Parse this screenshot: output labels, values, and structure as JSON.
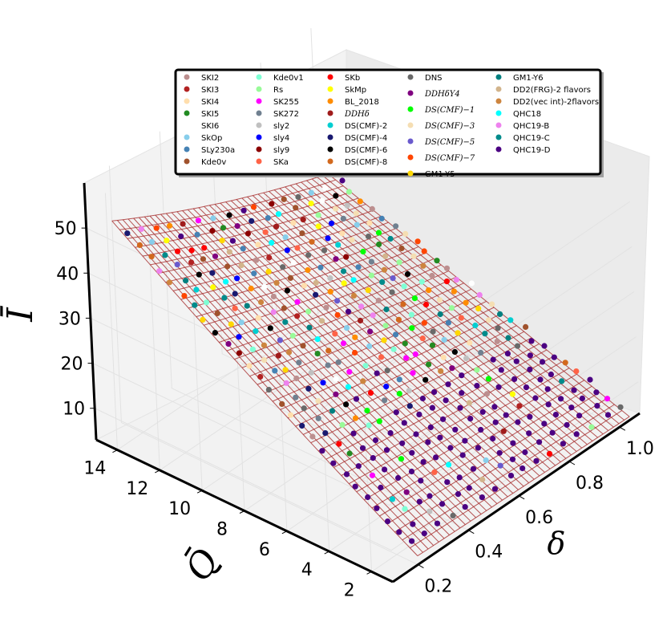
{
  "chart_data": {
    "type": "scatter",
    "title": "",
    "xlabel": "δ",
    "ylabel": "Q̄",
    "zlabel": "Ī",
    "x_ticks": [
      "0.2",
      "0.4",
      "0.6",
      "0.8",
      "1.0"
    ],
    "y_ticks": [
      "2",
      "4",
      "6",
      "8",
      "10",
      "12",
      "14"
    ],
    "z_ticks": [
      "10",
      "20",
      "30",
      "40",
      "50"
    ],
    "xlim": [
      0.1,
      1.08
    ],
    "ylim": [
      1,
      15
    ],
    "zlim": [
      3,
      60
    ],
    "surface": {
      "type": "wireframe",
      "color": "#a52a2a"
    },
    "legend_position": "top",
    "legend": [
      {
        "name": "SKI2",
        "color": "#bc8f8f"
      },
      {
        "name": "SKI3",
        "color": "#b22222"
      },
      {
        "name": "SKI4",
        "color": "#ffdead"
      },
      {
        "name": "SKI5",
        "color": "#228b22"
      },
      {
        "name": "SKI6",
        "color": "#ffffff"
      },
      {
        "name": "SkOp",
        "color": "#87ceeb"
      },
      {
        "name": "SLy230a",
        "color": "#4682b4"
      },
      {
        "name": "Kde0v",
        "color": "#a0522d"
      },
      {
        "name": "Kde0v1",
        "color": "#7fffd4"
      },
      {
        "name": "Rs",
        "color": "#98fb98"
      },
      {
        "name": "SK255",
        "color": "#ff00ff"
      },
      {
        "name": "SK272",
        "color": "#708090"
      },
      {
        "name": "sly2",
        "color": "#c0c0c0"
      },
      {
        "name": "sly4",
        "color": "#0000ff"
      },
      {
        "name": "sly9",
        "color": "#8b0000"
      },
      {
        "name": "SKa",
        "color": "#ff6347"
      },
      {
        "name": "SKb",
        "color": "#ff0000"
      },
      {
        "name": "SkMp",
        "color": "#ffff00"
      },
      {
        "name": "BL_2018",
        "color": "#ff8c00"
      },
      {
        "name": "DDHδ",
        "color": "#a01c1c"
      },
      {
        "name": "DS(CMF)-2",
        "color": "#00ced1"
      },
      {
        "name": "DS(CMF)-4",
        "color": "#191970"
      },
      {
        "name": "DS(CMF)-6",
        "color": "#000000"
      },
      {
        "name": "DS(CMF)-8",
        "color": "#d2691e"
      },
      {
        "name": "DNS",
        "color": "#696969"
      },
      {
        "name": "DDHδY4",
        "color": "#800080"
      },
      {
        "name": "DS(CMF)−1",
        "color": "#00ff00"
      },
      {
        "name": "DS(CMF)−3",
        "color": "#f5deb3"
      },
      {
        "name": "DS(CMF)−5",
        "color": "#6a5acd"
      },
      {
        "name": "DS(CMF)−7",
        "color": "#ff4500"
      },
      {
        "name": "GM1-Y5",
        "color": "#ffd700"
      },
      {
        "name": "GM1-Y6",
        "color": "#008080"
      },
      {
        "name": "DD2(FRG)-2 flavors",
        "color": "#d2b48c"
      },
      {
        "name": "DD2(vec int)-2flavors",
        "color": "#cd853f"
      },
      {
        "name": "QHC18",
        "color": "#00ffff"
      },
      {
        "name": "QHC19-B",
        "color": "#ee82ee"
      },
      {
        "name": "QHC19-C",
        "color": "#008b8b"
      },
      {
        "name": "QHC19-D",
        "color": "#4b0082"
      }
    ]
  }
}
